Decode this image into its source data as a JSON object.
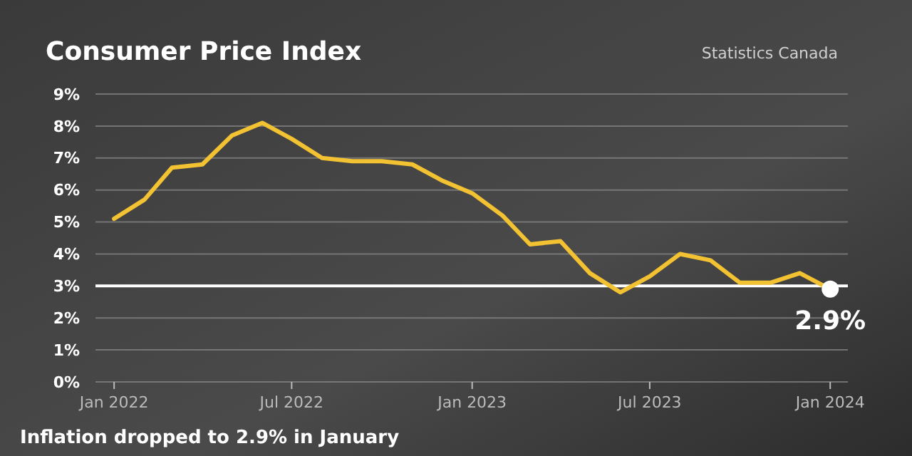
{
  "chart_data": {
    "type": "line",
    "title": "Consumer Price Index",
    "x": [
      "2022-01",
      "2022-02",
      "2022-03",
      "2022-04",
      "2022-05",
      "2022-06",
      "2022-07",
      "2022-08",
      "2022-09",
      "2022-10",
      "2022-11",
      "2022-12",
      "2023-01",
      "2023-02",
      "2023-03",
      "2023-04",
      "2023-05",
      "2023-06",
      "2023-07",
      "2023-08",
      "2023-09",
      "2023-10",
      "2023-11",
      "2023-12",
      "2024-01"
    ],
    "series": [
      {
        "color": "#f2c232",
        "values": [
          5.1,
          5.7,
          6.7,
          6.8,
          7.7,
          8.1,
          7.6,
          7.0,
          6.9,
          6.9,
          6.8,
          6.3,
          5.9,
          5.2,
          4.3,
          4.4,
          3.4,
          2.8,
          3.3,
          4.0,
          3.8,
          3.1,
          3.1,
          3.4,
          2.9
        ]
      }
    ],
    "xlim": [
      "2021-12-13",
      "2024-01-19"
    ],
    "xticks": [
      {
        "value": "2022-01",
        "label": "Jan 2022"
      },
      {
        "value": "2022-07",
        "label": "Jul 2022"
      },
      {
        "value": "2023-01",
        "label": "Jan 2023"
      },
      {
        "value": "2023-07",
        "label": "Jul 2023"
      },
      {
        "value": "2024-01",
        "label": "Jan 2024"
      }
    ],
    "ylim": [
      0,
      9
    ],
    "yticks": [
      {
        "value": 0,
        "label": "0%"
      },
      {
        "value": 1,
        "label": "1%"
      },
      {
        "value": 2,
        "label": "2%"
      },
      {
        "value": 3,
        "label": "3%"
      },
      {
        "value": 4,
        "label": "4%"
      },
      {
        "value": 5,
        "label": "5%"
      },
      {
        "value": 6,
        "label": "6%"
      },
      {
        "value": 7,
        "label": "7%"
      },
      {
        "value": 8,
        "label": "8%"
      },
      {
        "value": 9,
        "label": "9%"
      }
    ],
    "grid": "y",
    "marker": "none",
    "line_style": "solid",
    "ref_lines": [
      {
        "axis": "y",
        "value": 3,
        "color": "#ffffff"
      }
    ],
    "annotations": [
      "Statistics Canada",
      {
        "text": "2.9%",
        "x": "2024-01",
        "y": 2.9
      },
      "Inflation dropped to 2.9% in January"
    ]
  }
}
